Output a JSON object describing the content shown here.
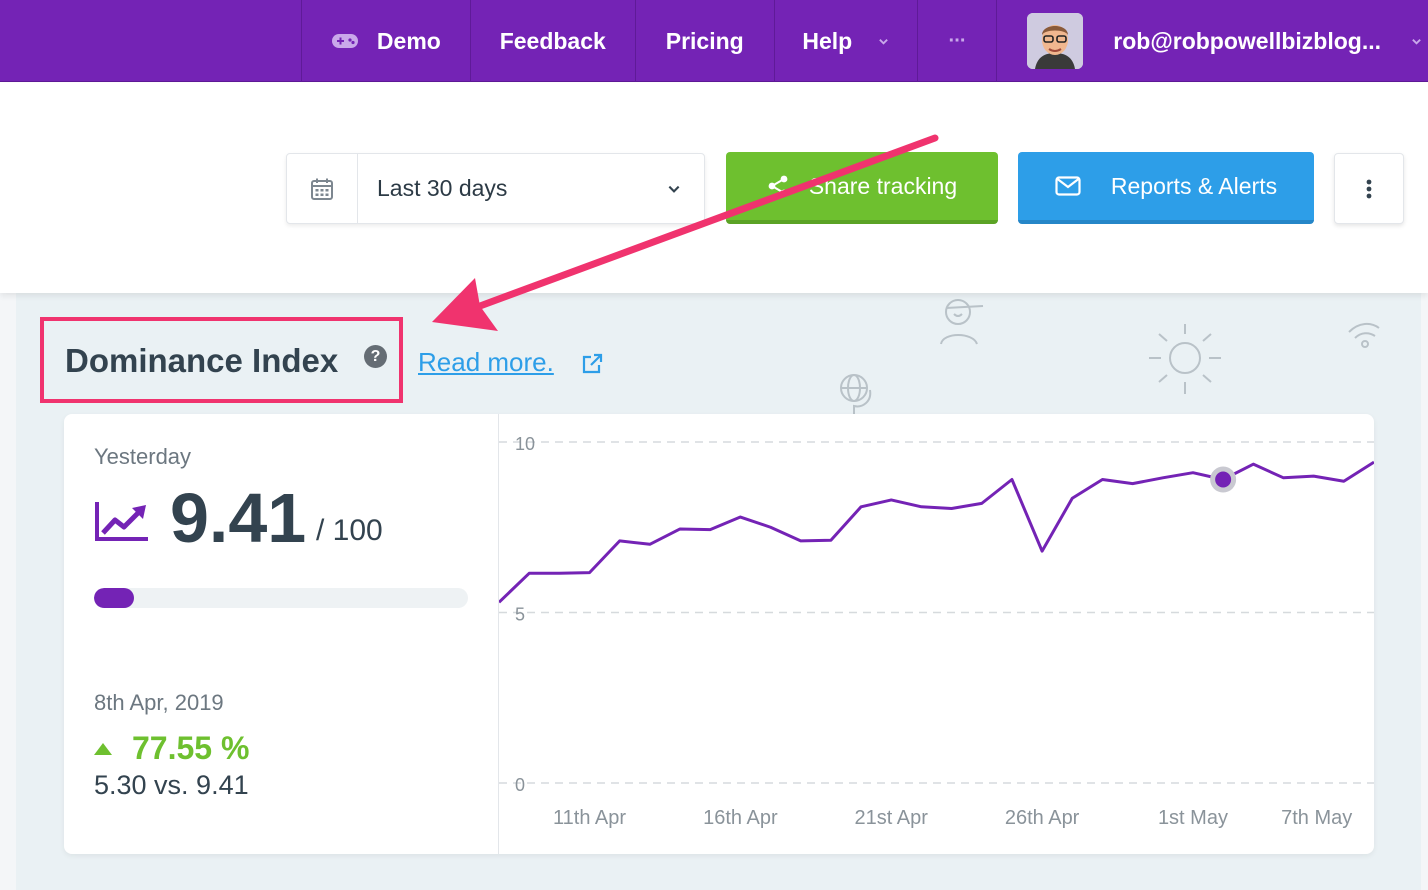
{
  "nav": {
    "demo_label": "Demo",
    "feedback_label": "Feedback",
    "pricing_label": "Pricing",
    "help_label": "Help",
    "more_label": "···",
    "user_email": "rob@robpowellbizblog..."
  },
  "toolbar": {
    "date_range": "Last 30 days",
    "share_label": "Share tracking",
    "reports_label": "Reports & Alerts"
  },
  "section": {
    "title": "Dominance Index",
    "read_more": "Read more."
  },
  "stats": {
    "period_label": "Yesterday",
    "value": "9.41",
    "out_of": "/ 100",
    "progress_fraction": 0.0941,
    "compare_date": "8th Apr, 2019",
    "change": "77.55 %",
    "compare_values": "5.30 vs. 9.41"
  },
  "colors": {
    "brand_purple": "#7423b5",
    "green": "#6ec02f",
    "blue": "#2d9ee8",
    "highlight_pink": "#f0336e"
  },
  "chart_data": {
    "type": "line",
    "title": "",
    "xlabel": "",
    "ylabel": "",
    "ylim": [
      0,
      10
    ],
    "yticks": [
      0,
      5,
      10
    ],
    "x_tick_labels": [
      "11th Apr",
      "16th Apr",
      "21st Apr",
      "26th Apr",
      "1st May",
      "7th May"
    ],
    "x_tick_index": [
      3,
      8,
      13,
      18,
      23,
      27.1
    ],
    "grid": true,
    "legend": "none",
    "highlight_index": 24,
    "series": [
      {
        "values": [
          5.3,
          6.15,
          6.15,
          6.17,
          7.1,
          7.0,
          7.45,
          7.43,
          7.8,
          7.5,
          7.1,
          7.12,
          8.1,
          8.3,
          8.1,
          8.05,
          8.2,
          8.9,
          6.8,
          8.35,
          8.9,
          8.78,
          8.95,
          9.1,
          8.9,
          9.35,
          8.95,
          9.0,
          8.85,
          9.41
        ]
      }
    ]
  }
}
